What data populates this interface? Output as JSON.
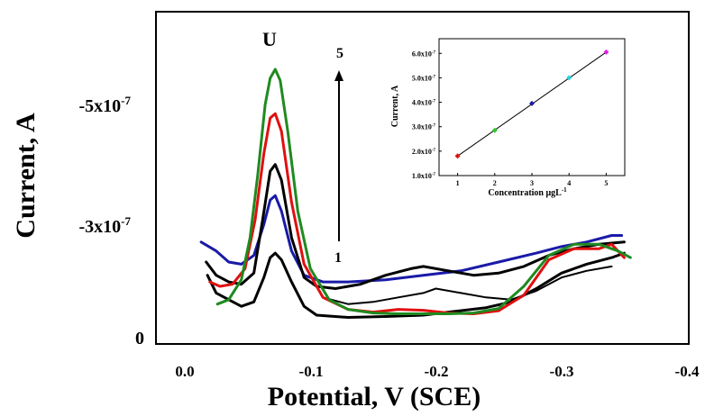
{
  "chart_data": [
    {
      "type": "line",
      "xlabel": "Potential, V (SCE)",
      "ylabel": "Current, A",
      "x_ticks": [
        "0.0",
        "-0.1",
        "-0.2",
        "-0.3",
        "-0.4"
      ],
      "y_ticks": [
        "0",
        "-3x10",
        "-5x10"
      ],
      "y_tick_exponent": "-7",
      "xlim": [
        0.0,
        -0.4
      ],
      "ylim": [
        0,
        -7.5e-07
      ],
      "annotations": {
        "peak_label": "U",
        "arrow_top": "5",
        "arrow_bottom": "1"
      },
      "series": [
        {
          "color": "#000000",
          "points": [
            [
              -0.018,
              -1.55e-07
            ],
            [
              -0.025,
              -1.15e-07
            ],
            [
              -0.035,
              -1e-07
            ],
            [
              -0.045,
              -8.5e-08
            ],
            [
              -0.055,
              -9.5e-08
            ],
            [
              -0.063,
              -1.5e-07
            ],
            [
              -0.068,
              -1.95e-07
            ],
            [
              -0.072,
              -2.05e-07
            ],
            [
              -0.077,
              -1.9e-07
            ],
            [
              -0.085,
              -1.4e-07
            ],
            [
              -0.095,
              -8.5e-08
            ],
            [
              -0.105,
              -6.5e-08
            ],
            [
              -0.13,
              -6e-08
            ],
            [
              -0.16,
              -6.2e-08
            ],
            [
              -0.19,
              -6.5e-08
            ],
            [
              -0.21,
              -7.2e-08
            ],
            [
              -0.24,
              -8.2e-08
            ],
            [
              -0.26,
              -9.5e-08
            ],
            [
              -0.28,
              -1.25e-07
            ],
            [
              -0.3,
              -1.6e-07
            ],
            [
              -0.32,
              -1.8e-07
            ],
            [
              -0.34,
              -1.95e-07
            ],
            [
              -0.35,
              -2.05e-07
            ]
          ]
        },
        {
          "color": "#1a1aa8",
          "points": [
            [
              -0.013,
              -2.3e-07
            ],
            [
              -0.025,
              -2.1e-07
            ],
            [
              -0.035,
              -1.85e-07
            ],
            [
              -0.045,
              -1.8e-07
            ],
            [
              -0.055,
              -2e-07
            ],
            [
              -0.063,
              -2.7e-07
            ],
            [
              -0.068,
              -3.25e-07
            ],
            [
              -0.072,
              -3.35e-07
            ],
            [
              -0.077,
              -3e-07
            ],
            [
              -0.085,
              -2.1e-07
            ],
            [
              -0.095,
              -1.55e-07
            ],
            [
              -0.11,
              -1.4e-07
            ],
            [
              -0.13,
              -1.4e-07
            ],
            [
              -0.16,
              -1.45e-07
            ],
            [
              -0.19,
              -1.55e-07
            ],
            [
              -0.22,
              -1.65e-07
            ],
            [
              -0.25,
              -1.85e-07
            ],
            [
              -0.28,
              -2.05e-07
            ],
            [
              -0.3,
              -2.2e-07
            ],
            [
              -0.32,
              -2.3e-07
            ],
            [
              -0.34,
              -2.45e-07
            ],
            [
              -0.348,
              -2.45e-07
            ]
          ]
        },
        {
          "color": "#000000",
          "points": [
            [
              -0.017,
              -1.85e-07
            ],
            [
              -0.025,
              -1.55e-07
            ],
            [
              -0.035,
              -1.4e-07
            ],
            [
              -0.045,
              -1.35e-07
            ],
            [
              -0.055,
              -1.6e-07
            ],
            [
              -0.062,
              -2.8e-07
            ],
            [
              -0.068,
              -3.9e-07
            ],
            [
              -0.072,
              -4.05e-07
            ],
            [
              -0.077,
              -3.7e-07
            ],
            [
              -0.085,
              -2.4e-07
            ],
            [
              -0.095,
              -1.5e-07
            ],
            [
              -0.105,
              -1.3e-07
            ],
            [
              -0.12,
              -1.25e-07
            ],
            [
              -0.14,
              -1.35e-07
            ],
            [
              -0.16,
              -1.55e-07
            ],
            [
              -0.18,
              -1.7e-07
            ],
            [
              -0.19,
              -1.75e-07
            ],
            [
              -0.21,
              -1.65e-07
            ],
            [
              -0.23,
              -1.55e-07
            ],
            [
              -0.25,
              -1.6e-07
            ],
            [
              -0.27,
              -1.75e-07
            ],
            [
              -0.29,
              -2e-07
            ],
            [
              -0.31,
              -2.15e-07
            ],
            [
              -0.33,
              -2.25e-07
            ],
            [
              -0.35,
              -2.3e-07
            ]
          ]
        },
        {
          "color": "#000000",
          "points": [
            [
              -0.11,
              -1.05e-07
            ],
            [
              -0.13,
              -9e-08
            ],
            [
              -0.15,
              -9.5e-08
            ],
            [
              -0.17,
              -1.05e-07
            ],
            [
              -0.19,
              -1.15e-07
            ],
            [
              -0.2,
              -1.25e-07
            ],
            [
              -0.22,
              -1.15e-07
            ],
            [
              -0.24,
              -1.05e-07
            ],
            [
              -0.26,
              -1e-07
            ],
            [
              -0.28,
              -1.2e-07
            ],
            [
              -0.3,
              -1.5e-07
            ],
            [
              -0.32,
              -1.65e-07
            ],
            [
              -0.34,
              -1.75e-07
            ]
          ]
        },
        {
          "color": "#e01010",
          "points": [
            [
              -0.02,
              -1.4e-07
            ],
            [
              -0.028,
              -1.3e-07
            ],
            [
              -0.038,
              -1.35e-07
            ],
            [
              -0.048,
              -1.7e-07
            ],
            [
              -0.056,
              -2.8e-07
            ],
            [
              -0.063,
              -4.3e-07
            ],
            [
              -0.068,
              -5.1e-07
            ],
            [
              -0.072,
              -5.2e-07
            ],
            [
              -0.077,
              -4.8e-07
            ],
            [
              -0.085,
              -3.2e-07
            ],
            [
              -0.095,
              -1.8e-07
            ],
            [
              -0.11,
              -1.05e-07
            ],
            [
              -0.13,
              -7.8e-08
            ],
            [
              -0.15,
              -7.2e-08
            ],
            [
              -0.17,
              -7.8e-08
            ],
            [
              -0.19,
              -7.6e-08
            ],
            [
              -0.21,
              -7e-08
            ],
            [
              -0.23,
              -6.8e-08
            ],
            [
              -0.25,
              -7.5e-08
            ],
            [
              -0.27,
              -1.1e-07
            ],
            [
              -0.29,
              -1.9e-07
            ],
            [
              -0.31,
              -2.15e-07
            ],
            [
              -0.33,
              -2.15e-07
            ],
            [
              -0.34,
              -2.25e-07
            ],
            [
              -0.345,
              -2.1e-07
            ],
            [
              -0.35,
              -1.95e-07
            ]
          ]
        },
        {
          "color": "#1f8a1f",
          "points": [
            [
              -0.026,
              -9e-08
            ],
            [
              -0.035,
              -1e-07
            ],
            [
              -0.045,
              -1.45e-07
            ],
            [
              -0.052,
              -2.4e-07
            ],
            [
              -0.058,
              -3.8e-07
            ],
            [
              -0.064,
              -5.4e-07
            ],
            [
              -0.068,
              -6e-07
            ],
            [
              -0.072,
              -6.2e-07
            ],
            [
              -0.076,
              -5.95e-07
            ],
            [
              -0.082,
              -4.8e-07
            ],
            [
              -0.09,
              -3e-07
            ],
            [
              -0.1,
              -1.7e-07
            ],
            [
              -0.115,
              -1e-07
            ],
            [
              -0.13,
              -7.8e-08
            ],
            [
              -0.15,
              -7e-08
            ],
            [
              -0.17,
              -6.8e-08
            ],
            [
              -0.19,
              -6.8e-08
            ],
            [
              -0.21,
              -6.8e-08
            ],
            [
              -0.23,
              -7e-08
            ],
            [
              -0.25,
              -8e-08
            ],
            [
              -0.27,
              -1.3e-07
            ],
            [
              -0.29,
              -2e-07
            ],
            [
              -0.31,
              -2.25e-07
            ],
            [
              -0.33,
              -2.25e-07
            ],
            [
              -0.345,
              -2.1e-07
            ],
            [
              -0.355,
              -1.95e-07
            ]
          ]
        }
      ]
    },
    {
      "type": "scatter",
      "xlabel": "Concentration μgL",
      "xlabel_sup": "-1",
      "ylabel": "Current, A",
      "x_ticks": [
        "1",
        "2",
        "3",
        "4",
        "5"
      ],
      "y_ticks": [
        "1.0x10",
        "2.0x10",
        "3.0x10",
        "4.0x10",
        "5.0x10",
        "6.0x10"
      ],
      "y_tick_exponent": "-7",
      "xlim": [
        0.5,
        5.5
      ],
      "ylim": [
        1e-07,
        6.6e-07
      ],
      "fit_line": {
        "x": [
          1,
          5
        ],
        "y": [
          1.8e-07,
          6.05e-07
        ]
      },
      "points": [
        {
          "x": 1,
          "y": 1.8e-07,
          "color": "#e01010"
        },
        {
          "x": 2,
          "y": 2.85e-07,
          "color": "#2ec72e"
        },
        {
          "x": 3,
          "y": 3.95e-07,
          "color": "#1a1aa8"
        },
        {
          "x": 4,
          "y": 5e-07,
          "color": "#22d3e0"
        },
        {
          "x": 5,
          "y": 6.05e-07,
          "color": "#e020e0"
        }
      ]
    }
  ]
}
